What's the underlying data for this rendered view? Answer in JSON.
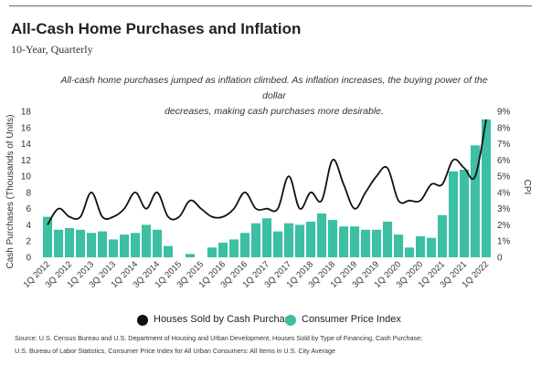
{
  "header": {
    "title": "All-Cash Home Purchases and Inflation",
    "subtitle": "10-Year, Quarterly",
    "description_line1": "All-cash home purchases jumped as inflation climbed. As inflation increases, the buying power of the dollar",
    "description_line2": "decreases, making cash purchases more desirable."
  },
  "legend": {
    "houses_label": "Houses Sold by Cash Purchase",
    "cpi_label": "Consumer Price Index"
  },
  "source": {
    "line1": "Source:  U.S. Census Bureau and U.S. Department of Housing and Urban Development, Houses Sold by Type of Financing, Cash Purchase;",
    "line2": "U.S. Bureau of Labor Statistics, Consumer Price Index for All Urban Consumers: All Items in U.S. City Average"
  },
  "colors": {
    "bars": "#3cbfa3",
    "line": "#111111",
    "axis_text": "#333333"
  },
  "chart_data": {
    "type": "bar",
    "combo": "bar+line",
    "x_labels": [
      "1Q 2012",
      "3Q 2012",
      "1Q 2013",
      "3Q 2013",
      "1Q 2014",
      "3Q 2014",
      "1Q 2015",
      "3Q 2015",
      "1Q 2016",
      "3Q 2016",
      "1Q 2017",
      "3Q 2017",
      "1Q 2018",
      "3Q 2018",
      "1Q 2019",
      "3Q 2019",
      "1Q 2020",
      "3Q 2020",
      "1Q 2021",
      "3Q 2021",
      "1Q 2022"
    ],
    "categories": [
      "1Q 2012",
      "2Q 2012",
      "3Q 2012",
      "4Q 2012",
      "1Q 2013",
      "2Q 2013",
      "3Q 2013",
      "4Q 2013",
      "1Q 2014",
      "2Q 2014",
      "3Q 2014",
      "4Q 2014",
      "1Q 2015",
      "2Q 2015",
      "3Q 2015",
      "4Q 2015",
      "1Q 2016",
      "2Q 2016",
      "3Q 2016",
      "4Q 2016",
      "1Q 2017",
      "2Q 2017",
      "3Q 2017",
      "4Q 2017",
      "1Q 2018",
      "2Q 2018",
      "3Q 2018",
      "4Q 2018",
      "1Q 2019",
      "2Q 2019",
      "3Q 2019",
      "4Q 2019",
      "1Q 2020",
      "2Q 2020",
      "3Q 2020",
      "4Q 2020",
      "1Q 2021",
      "2Q 2021",
      "3Q 2021",
      "4Q 2021",
      "1Q 2022"
    ],
    "series": [
      {
        "name": "Houses Sold by Cash Purchase",
        "axis": "left",
        "type": "line",
        "values": [
          4,
          6,
          5,
          5,
          8,
          5,
          5,
          6,
          8,
          6,
          8,
          5,
          5,
          7,
          6,
          5,
          5,
          6,
          8,
          6,
          6,
          6,
          10,
          6,
          8,
          7,
          12,
          9,
          6,
          8,
          10,
          11,
          7,
          7,
          7,
          9,
          9,
          12,
          11,
          10,
          17
        ]
      },
      {
        "name": "Consumer Price Index",
        "axis": "right",
        "type": "bar",
        "values": [
          2.5,
          1.7,
          1.8,
          1.7,
          1.5,
          1.6,
          1.1,
          1.4,
          1.5,
          2.0,
          1.7,
          0.7,
          null,
          0.2,
          null,
          0.6,
          0.9,
          1.1,
          1.5,
          2.1,
          2.4,
          1.6,
          2.1,
          2.0,
          2.2,
          2.7,
          2.3,
          1.9,
          1.9,
          1.7,
          1.7,
          2.2,
          1.4,
          0.6,
          1.3,
          1.2,
          2.6,
          5.3,
          5.4,
          6.9,
          8.5
        ]
      }
    ],
    "left_axis": {
      "label": "Cash Purchases (Thousands of Units)",
      "ticks": [
        0,
        2,
        4,
        6,
        8,
        10,
        12,
        14,
        16,
        18
      ],
      "range": [
        0,
        18
      ]
    },
    "right_axis": {
      "label": "CPI",
      "ticks": [
        "0",
        "1%",
        "2%",
        "3%",
        "4%",
        "5%",
        "6%",
        "7%",
        "8%",
        "9%"
      ],
      "range": [
        0,
        9
      ]
    },
    "legend_position": "bottom",
    "grid": false
  }
}
